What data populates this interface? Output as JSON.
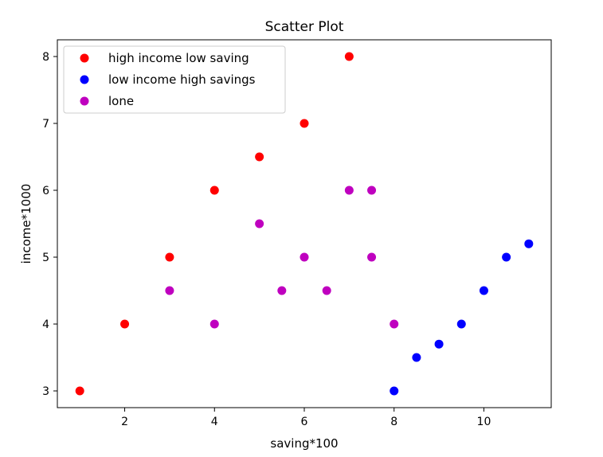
{
  "chart_data": {
    "type": "scatter",
    "title": "Scatter Plot",
    "xlabel": "saving*100",
    "ylabel": "income*1000",
    "xlim": [
      0.5,
      11.5
    ],
    "ylim": [
      2.75,
      8.25
    ],
    "xticks": [
      2,
      4,
      6,
      8,
      10
    ],
    "yticks": [
      3,
      4,
      5,
      6,
      7,
      8
    ],
    "legend_position": "top-left",
    "grid": false,
    "series": [
      {
        "name": "high income low saving",
        "color": "#ff0000",
        "x": [
          1,
          2,
          3,
          4,
          5,
          6,
          7
        ],
        "y": [
          3,
          4,
          5,
          6,
          6.5,
          7,
          8
        ]
      },
      {
        "name": "low income high savings",
        "color": "#0000ff",
        "x": [
          8,
          8.5,
          9,
          9.5,
          10,
          10.5,
          11
        ],
        "y": [
          3,
          3.5,
          3.7,
          4,
          4.5,
          5,
          5.2
        ]
      },
      {
        "name": "lone",
        "color": "#bf00bf",
        "x": [
          3,
          4,
          5,
          5.5,
          6,
          6.5,
          7,
          7.5,
          7.5,
          8
        ],
        "y": [
          4.5,
          4,
          5.5,
          4.5,
          5,
          4.5,
          6,
          6,
          5,
          4
        ]
      }
    ]
  }
}
